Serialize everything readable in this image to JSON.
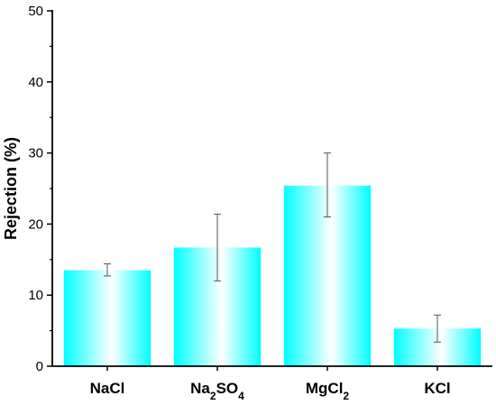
{
  "chart_data": {
    "type": "bar",
    "categories": [
      {
        "base": "NaCl",
        "parts": [
          {
            "t": "NaCl",
            "sub": false
          }
        ]
      },
      {
        "base": "Na2SO4",
        "parts": [
          {
            "t": "Na",
            "sub": false
          },
          {
            "t": "2",
            "sub": true
          },
          {
            "t": "SO",
            "sub": false
          },
          {
            "t": "4",
            "sub": true
          }
        ]
      },
      {
        "base": "MgCl2",
        "parts": [
          {
            "t": "MgCl",
            "sub": false
          },
          {
            "t": "2",
            "sub": true
          }
        ]
      },
      {
        "base": "KCl",
        "parts": [
          {
            "t": "KCl",
            "sub": false
          }
        ]
      }
    ],
    "values": [
      13.5,
      16.7,
      25.4,
      5.3
    ],
    "error_low": [
      12.7,
      12.0,
      21.0,
      3.4
    ],
    "error_high": [
      14.4,
      21.4,
      30.0,
      7.2
    ],
    "ylabel": "Rejection (%)",
    "xlabel": "",
    "ylim": [
      0,
      50
    ],
    "yticks": [
      0,
      10,
      20,
      30,
      40,
      50
    ],
    "grid": false,
    "bar_fill": {
      "edge": "#00ffff",
      "center": "#ffffff"
    },
    "axis_color": "#000000",
    "error_color": "#555555"
  }
}
